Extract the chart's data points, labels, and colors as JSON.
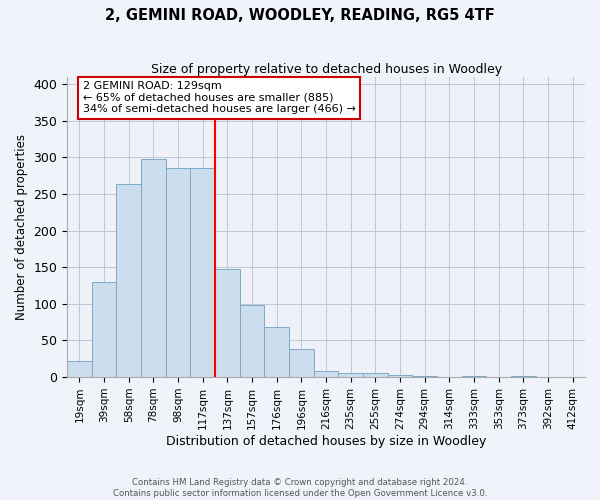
{
  "title": "2, GEMINI ROAD, WOODLEY, READING, RG5 4TF",
  "subtitle": "Size of property relative to detached houses in Woodley",
  "xlabel": "Distribution of detached houses by size in Woodley",
  "ylabel": "Number of detached properties",
  "bar_labels": [
    "19sqm",
    "39sqm",
    "58sqm",
    "78sqm",
    "98sqm",
    "117sqm",
    "137sqm",
    "157sqm",
    "176sqm",
    "196sqm",
    "216sqm",
    "235sqm",
    "255sqm",
    "274sqm",
    "294sqm",
    "314sqm",
    "333sqm",
    "353sqm",
    "373sqm",
    "392sqm",
    "412sqm"
  ],
  "bar_heights": [
    22,
    130,
    263,
    298,
    285,
    285,
    147,
    98,
    68,
    38,
    9,
    6,
    5,
    3,
    1,
    0,
    2,
    0,
    2,
    0,
    0
  ],
  "bar_color": "#ccdded",
  "bar_edge_color": "#7aaac8",
  "vline_x": 6.0,
  "vline_color": "red",
  "ylim": [
    0,
    410
  ],
  "yticks": [
    0,
    50,
    100,
    150,
    200,
    250,
    300,
    350,
    400
  ],
  "annotation_title": "2 GEMINI ROAD: 129sqm",
  "annotation_line1": "← 65% of detached houses are smaller (885)",
  "annotation_line2": "34% of semi-detached houses are larger (466) →",
  "annotation_box_color": "#ffffff",
  "annotation_box_edge": "#cc0000",
  "footer_line1": "Contains HM Land Registry data © Crown copyright and database right 2024.",
  "footer_line2": "Contains public sector information licensed under the Open Government Licence v3.0.",
  "background_color": "#f0f4fa",
  "plot_background": "#eef2f8",
  "grid_color": "#c0c8d8"
}
